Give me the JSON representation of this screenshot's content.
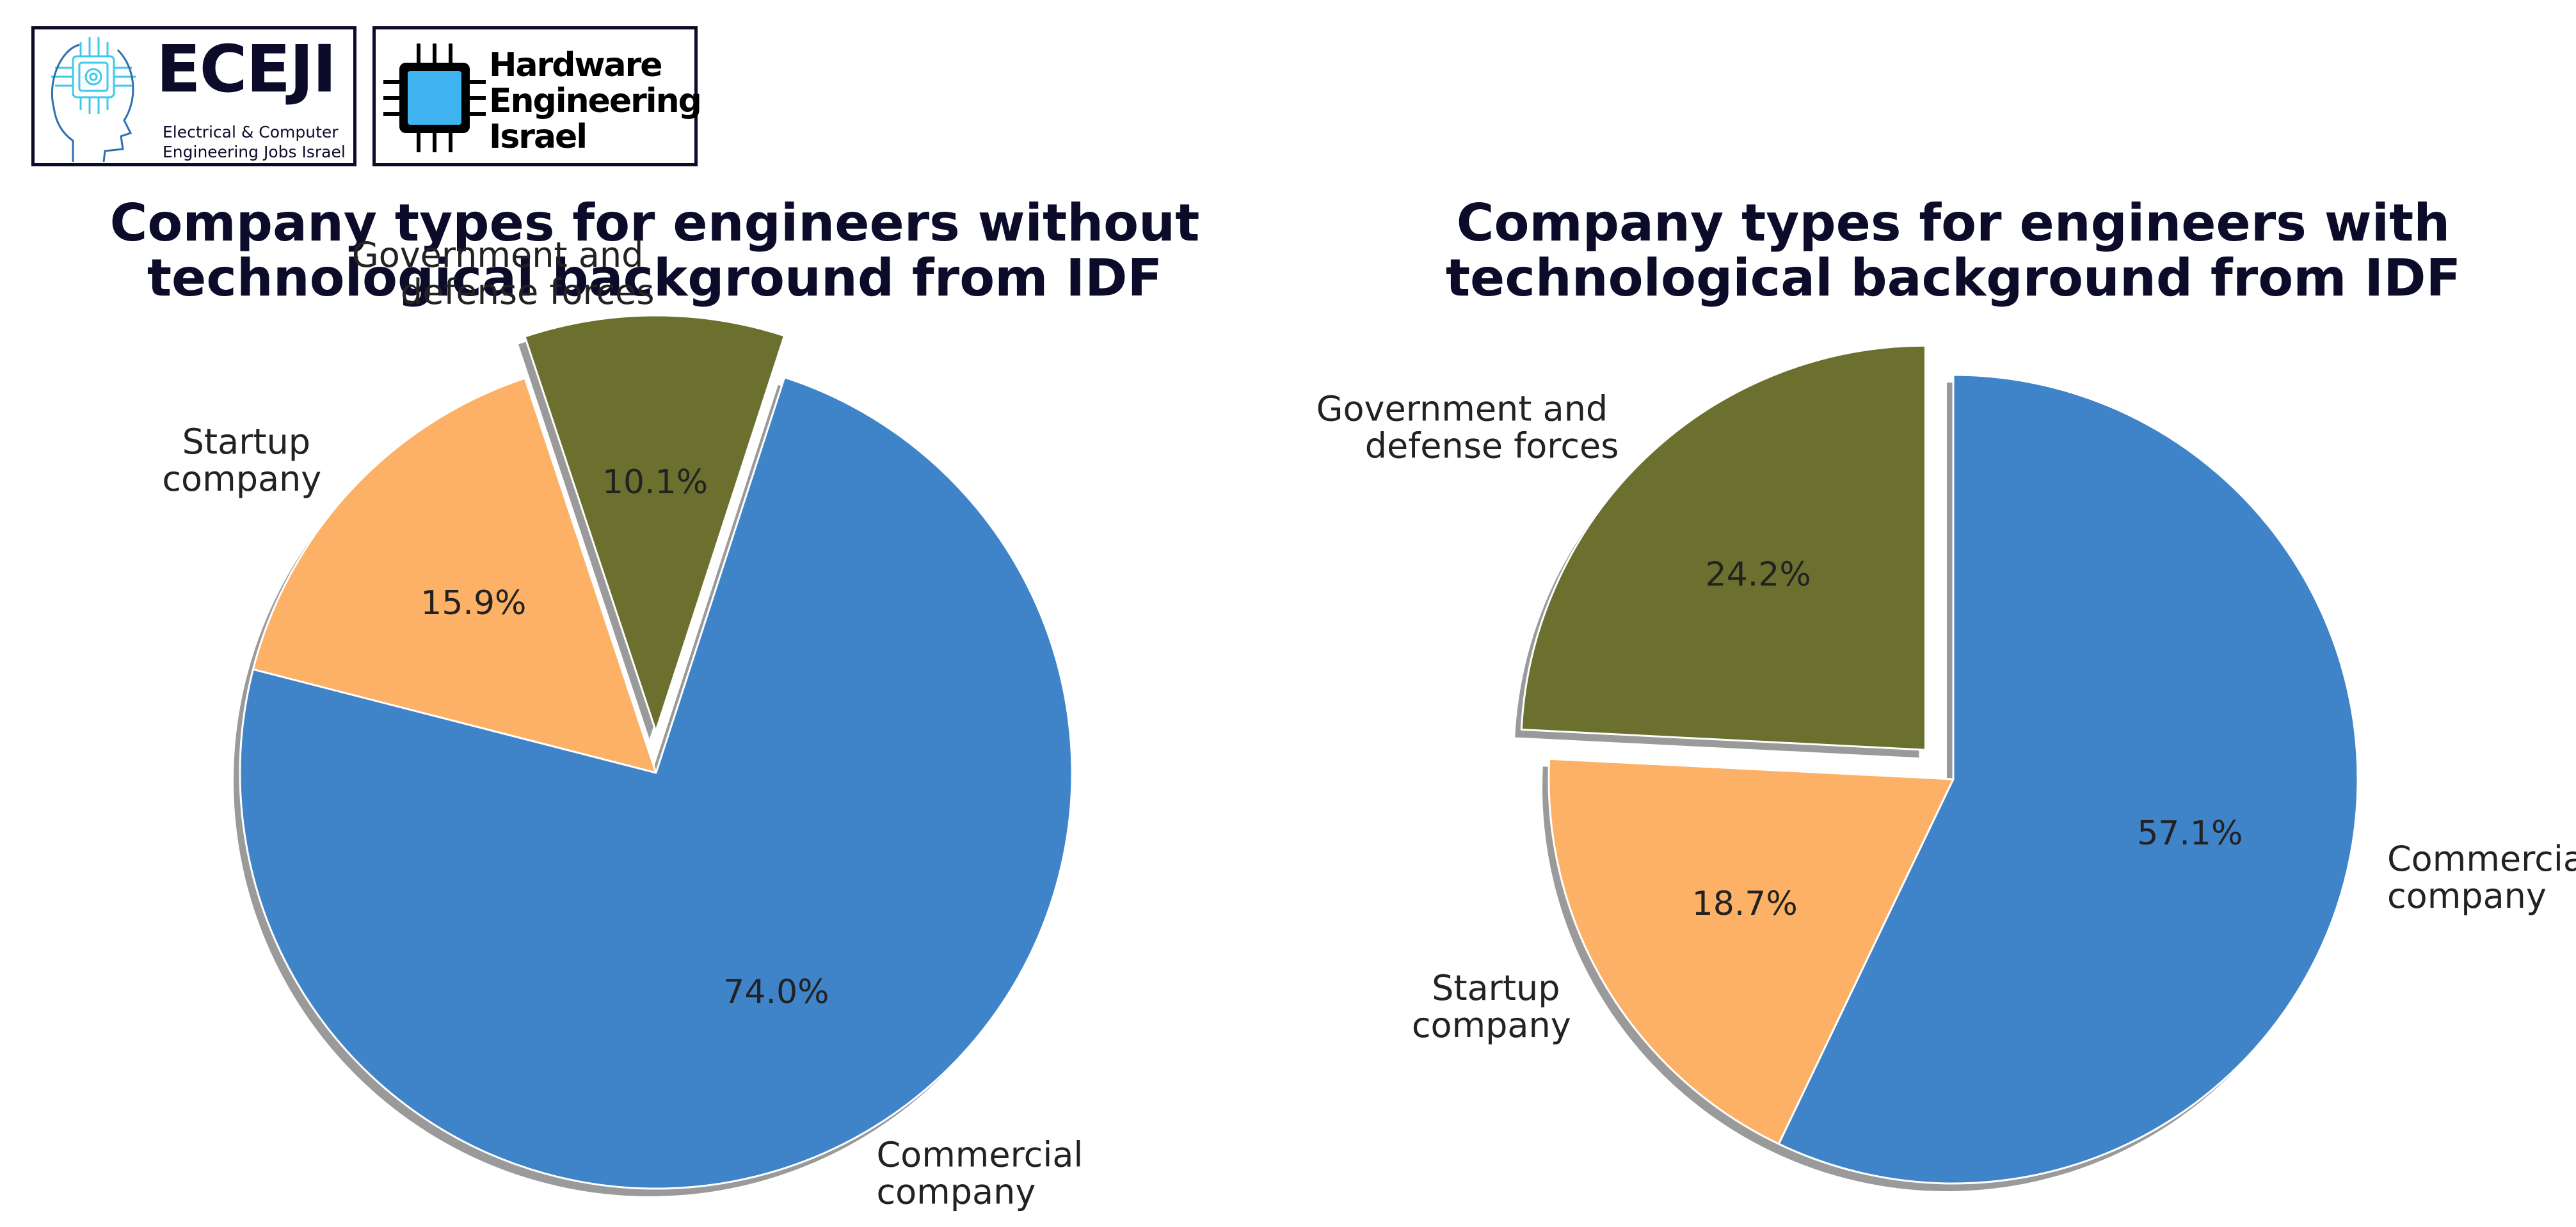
{
  "logos": {
    "eceji": {
      "name": "ECEJI",
      "subtitle_line1": "Electrical  &  Computer",
      "subtitle_line2": "Engineering Jobs Israel"
    },
    "hardware_engineering_israel": {
      "line1": "Hardware",
      "line2": "Engineering",
      "line3": "Israel"
    }
  },
  "colors": {
    "commercial": "#3f84c8",
    "startup": "#fdb166",
    "government": "#6b702f",
    "title": "#0c0c2a",
    "shadow": "#8f8f8f"
  },
  "chart_data": [
    {
      "type": "pie",
      "title_lines": [
        "Company types for engineers without",
        "technological background from IDF"
      ],
      "categories": [
        "Government and defense forces",
        "Startup company",
        "Commercial company"
      ],
      "category_label_lines": [
        [
          "Government and",
          "defense forces"
        ],
        [
          "Startup",
          "company"
        ],
        [
          "Commercial",
          "company"
        ]
      ],
      "values": [
        10.1,
        15.9,
        74.0
      ],
      "value_labels": [
        "10.1%",
        "15.9%",
        "74.0%"
      ],
      "colors": [
        "#6b702f",
        "#fdb166",
        "#3f84c8"
      ],
      "explode": [
        0.1,
        0,
        0
      ],
      "start_angle_deg": 72,
      "shadow": true
    },
    {
      "type": "pie",
      "title_lines": [
        "Company types for engineers with",
        "technological background from IDF"
      ],
      "categories": [
        "Government and defense forces",
        "Startup company",
        "Commercial company"
      ],
      "category_label_lines": [
        [
          "Government and",
          "defense forces"
        ],
        [
          "Startup",
          "company"
        ],
        [
          "Commercial",
          "company"
        ]
      ],
      "values": [
        24.2,
        18.7,
        57.1
      ],
      "value_labels": [
        "24.2%",
        "18.7%",
        "57.1%"
      ],
      "colors": [
        "#6b702f",
        "#fdb166",
        "#3f84c8"
      ],
      "explode": [
        0.1,
        0,
        0
      ],
      "start_angle_deg": 90,
      "shadow": true
    }
  ]
}
